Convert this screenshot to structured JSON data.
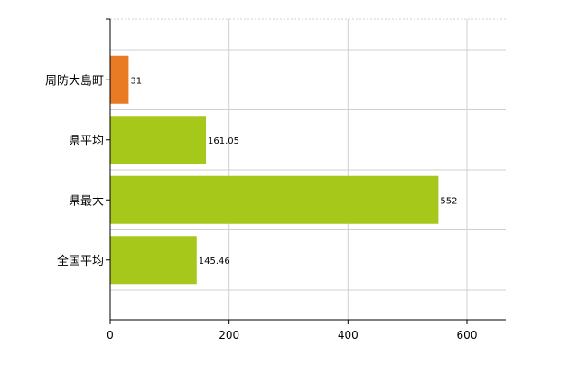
{
  "chart_data": {
    "type": "bar",
    "orientation": "horizontal",
    "categories": [
      "周防大島町",
      "県平均",
      "県最大",
      "全国平均"
    ],
    "values": [
      31,
      161.05,
      552,
      145.46
    ],
    "value_labels": [
      "31",
      "161.05",
      "552",
      "145.46"
    ],
    "bar_colors": [
      "#e87b24",
      "#a5c81a",
      "#a5c81a",
      "#a5c81a"
    ],
    "title": "",
    "xlabel": "",
    "ylabel": "",
    "xlim": [
      0,
      660
    ],
    "x_ticks": [
      0,
      200,
      400,
      600
    ],
    "grid": true,
    "legend": "none"
  }
}
